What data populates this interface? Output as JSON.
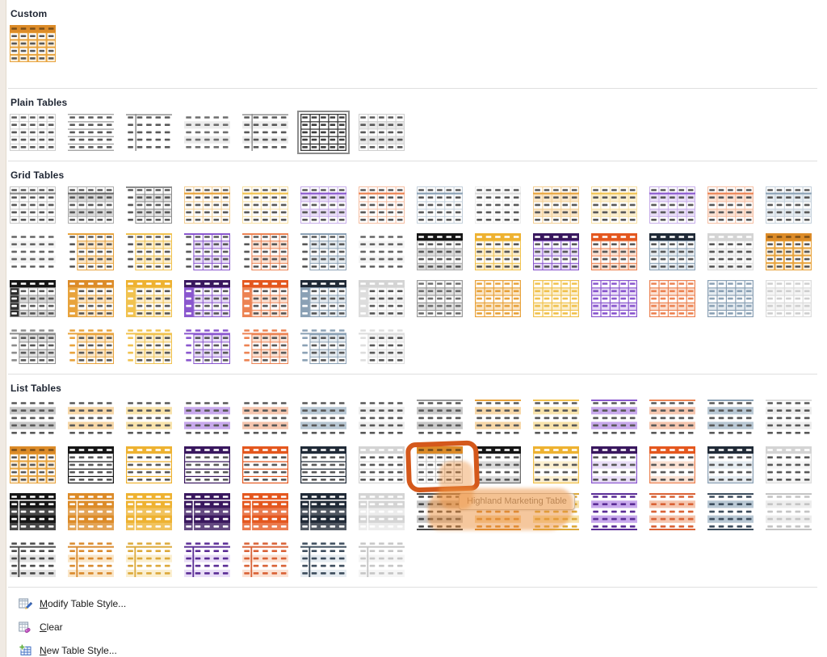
{
  "panel": {
    "bg": "#FFFFFF"
  },
  "annotation": {
    "ring_color": "#D4581B",
    "blob_color": "rgba(236,144,60,0.5)"
  },
  "tooltip": {
    "text": "Highland Marketing Table"
  },
  "palette": {
    "gry": {
      "dark": "#3F3F3F",
      "mid": "#8C8C8C",
      "light": "#C6C6C6",
      "band": "#E3E3E3",
      "stripe": "#C9C9C9",
      "deep": "#4A4A4A"
    },
    "blk": {
      "dark": "#151515",
      "mid": "#6B6B6B",
      "light": "#ABABAB",
      "band": "#D9D9D9",
      "stripe": "#BFBFBF",
      "deep": "#262626"
    },
    "org": {
      "dark": "#DC8B28",
      "mid": "#E8A33C",
      "light": "#F3CE92",
      "band": "#FAE6C8",
      "stripe": "#F6D7A8",
      "deep": "#D98A2E",
      "cell": "#FBEFDB"
    },
    "gld": {
      "dark": "#EEB231",
      "mid": "#F1C24F",
      "light": "#F7DFA2",
      "band": "#FBEFD0",
      "stripe": "#F8E3AC",
      "deep": "#DCA93A"
    },
    "pur": {
      "dark": "#39175E",
      "mid": "#8A57CE",
      "light": "#C7ADE9",
      "band": "#E9DEF7",
      "stripe": "#C8A9EC",
      "deep": "#5B2D96"
    },
    "red": {
      "dark": "#E4571E",
      "mid": "#EC8353",
      "light": "#F5BEA3",
      "band": "#FBE2D4",
      "stripe": "#F5C6AF",
      "deep": "#D96236"
    },
    "nvy": {
      "dark": "#202A37",
      "mid": "#8BA1B5",
      "light": "#C4D0DB",
      "band": "#E6ECF1",
      "stripe": "#B9C8D4",
      "deep": "#3E4E5E"
    },
    "wht": {
      "dark": "#D4D4D4",
      "mid": "#DDDDDD",
      "light": "#ECECEC",
      "band": "#F5F5F5",
      "stripe": "#EDEDED",
      "deep": "#C4C4C4"
    }
  },
  "sections": [
    {
      "id": "custom",
      "title": "Custom",
      "rows": [
        [
          {
            "v": "solidgrid",
            "c": "org"
          }
        ]
      ]
    },
    {
      "id": "plain",
      "title": "Plain Tables",
      "rows": [
        [
          {
            "v": "pgrid",
            "c": "wht"
          },
          {
            "v": "phlines",
            "c": "gry"
          },
          {
            "v": "pcorner",
            "c": "gry"
          },
          {
            "v": "pbanded",
            "c": "wht"
          },
          {
            "v": "pcorner2",
            "c": "gry"
          },
          {
            "v": "tgrid",
            "c": "blk",
            "selected": true
          },
          {
            "v": "pgrid2",
            "c": "wht"
          }
        ]
      ]
    },
    {
      "id": "grid",
      "title": "Grid Tables",
      "rows": [
        [
          {
            "v": "light",
            "c": "gry"
          },
          {
            "v": "bandgrid",
            "c": "blk"
          },
          {
            "v": "colgrid",
            "c": "gry"
          },
          {
            "v": "light",
            "c": "org"
          },
          {
            "v": "light",
            "c": "gld"
          },
          {
            "v": "bandgrid",
            "c": "pur"
          },
          {
            "v": "light",
            "c": "red"
          },
          {
            "v": "light",
            "c": "nvy"
          },
          {
            "v": "light",
            "c": "wht"
          },
          {
            "v": "bandgrid",
            "c": "org"
          },
          {
            "v": "bandgrid",
            "c": "gld"
          },
          {
            "v": "bandgrid",
            "c": "pur"
          },
          {
            "v": "bandgrid",
            "c": "red"
          },
          {
            "v": "bandgrid",
            "c": "nvy"
          }
        ],
        [
          {
            "v": "dashes",
            "c": "wht"
          },
          {
            "v": "colgrid",
            "c": "org"
          },
          {
            "v": "colgrid",
            "c": "gld"
          },
          {
            "v": "colgrid",
            "c": "pur"
          },
          {
            "v": "colgrid",
            "c": "red"
          },
          {
            "v": "colgrid",
            "c": "nvy"
          },
          {
            "v": "dashes",
            "c": "wht"
          },
          {
            "v": "hdr",
            "c": "blk"
          },
          {
            "v": "hdr",
            "c": "gld"
          },
          {
            "v": "hdr",
            "c": "pur"
          },
          {
            "v": "hdr",
            "c": "red"
          },
          {
            "v": "hdr",
            "c": "nvy"
          },
          {
            "v": "hdr",
            "c": "wht"
          },
          {
            "v": "solidgrid",
            "c": "org"
          }
        ],
        [
          {
            "v": "hdrcol",
            "c": "blk"
          },
          {
            "v": "hdrcol",
            "c": "org"
          },
          {
            "v": "hdrcol",
            "c": "gld"
          },
          {
            "v": "hdrcol",
            "c": "pur"
          },
          {
            "v": "hdrcol",
            "c": "red"
          },
          {
            "v": "hdrcol",
            "c": "nvy"
          },
          {
            "v": "hdrcol",
            "c": "wht"
          },
          {
            "v": "colorgrid",
            "c": "gry"
          },
          {
            "v": "colorgrid",
            "c": "org"
          },
          {
            "v": "colorgrid",
            "c": "gld"
          },
          {
            "v": "colorgrid",
            "c": "pur"
          },
          {
            "v": "colorgrid",
            "c": "red"
          },
          {
            "v": "colorgrid",
            "c": "nvy"
          },
          {
            "v": "colorgrid",
            "c": "wht"
          }
        ],
        [
          {
            "v": "corner",
            "c": "gry"
          },
          {
            "v": "corner",
            "c": "org"
          },
          {
            "v": "corner",
            "c": "gld"
          },
          {
            "v": "corner",
            "c": "pur"
          },
          {
            "v": "corner",
            "c": "red"
          },
          {
            "v": "corner",
            "c": "nvy"
          },
          {
            "v": "corner",
            "c": "wht"
          }
        ]
      ]
    },
    {
      "id": "list",
      "title": "List Tables",
      "rows": [
        [
          {
            "v": "stripes",
            "c": "gry"
          },
          {
            "v": "stripes",
            "c": "org"
          },
          {
            "v": "stripes",
            "c": "gld"
          },
          {
            "v": "stripes",
            "c": "pur"
          },
          {
            "v": "stripes",
            "c": "red"
          },
          {
            "v": "stripes",
            "c": "nvy"
          },
          {
            "v": "stripes",
            "c": "wht"
          },
          {
            "v": "stripestop",
            "c": "gry"
          },
          {
            "v": "stripestop",
            "c": "org"
          },
          {
            "v": "stripestop",
            "c": "gld"
          },
          {
            "v": "stripestop",
            "c": "pur"
          },
          {
            "v": "stripestop",
            "c": "red"
          },
          {
            "v": "stripestop",
            "c": "nvy"
          },
          {
            "v": "stripestop",
            "c": "wht"
          }
        ],
        [
          {
            "v": "solidgrid",
            "c": "org"
          },
          {
            "v": "hdrlines",
            "c": "blk"
          },
          {
            "v": "hdrlines",
            "c": "gld"
          },
          {
            "v": "hdrlines",
            "c": "pur"
          },
          {
            "v": "hdrlines",
            "c": "red"
          },
          {
            "v": "hdrlines",
            "c": "nvy"
          },
          {
            "v": "hdrlines",
            "c": "wht"
          },
          {
            "v": "hdrgrid",
            "c": "org",
            "highlight": true
          },
          {
            "v": "hdrband",
            "c": "blk"
          },
          {
            "v": "hdrband",
            "c": "gld"
          },
          {
            "v": "hdrband",
            "c": "pur"
          },
          {
            "v": "hdrband",
            "c": "red"
          },
          {
            "v": "hdrband",
            "c": "nvy"
          },
          {
            "v": "hdrband",
            "c": "wht"
          }
        ],
        [
          {
            "v": "solid",
            "c": "blk"
          },
          {
            "v": "solid",
            "c": "org"
          },
          {
            "v": "solid",
            "c": "gld"
          },
          {
            "v": "solid",
            "c": "pur"
          },
          {
            "v": "solid",
            "c": "red"
          },
          {
            "v": "solid",
            "c": "nvy"
          },
          {
            "v": "solid",
            "c": "wht"
          },
          {
            "v": "stripestb",
            "c": "gry"
          },
          {
            "v": "stripestb",
            "c": "org"
          },
          {
            "v": "stripestb",
            "c": "gld"
          },
          {
            "v": "stripestb",
            "c": "pur"
          },
          {
            "v": "stripestb",
            "c": "red"
          },
          {
            "v": "stripestb",
            "c": "nvy"
          },
          {
            "v": "stripestb",
            "c": "wht"
          }
        ],
        [
          {
            "v": "list7",
            "c": "gry"
          },
          {
            "v": "list7",
            "c": "org"
          },
          {
            "v": "list7",
            "c": "gld"
          },
          {
            "v": "list7",
            "c": "pur"
          },
          {
            "v": "list7",
            "c": "red"
          },
          {
            "v": "list7",
            "c": "nvy"
          },
          {
            "v": "list7",
            "c": "wht"
          }
        ]
      ]
    }
  ],
  "menu": [
    {
      "id": "modify",
      "label": "Modify Table Style...",
      "accel": "M",
      "icon": "modify-table-style-icon"
    },
    {
      "id": "clear",
      "label": "Clear",
      "accel": "C",
      "icon": "clear-table-style-icon"
    },
    {
      "id": "new",
      "label": "New Table Style...",
      "accel": "N",
      "icon": "new-table-style-icon"
    }
  ]
}
